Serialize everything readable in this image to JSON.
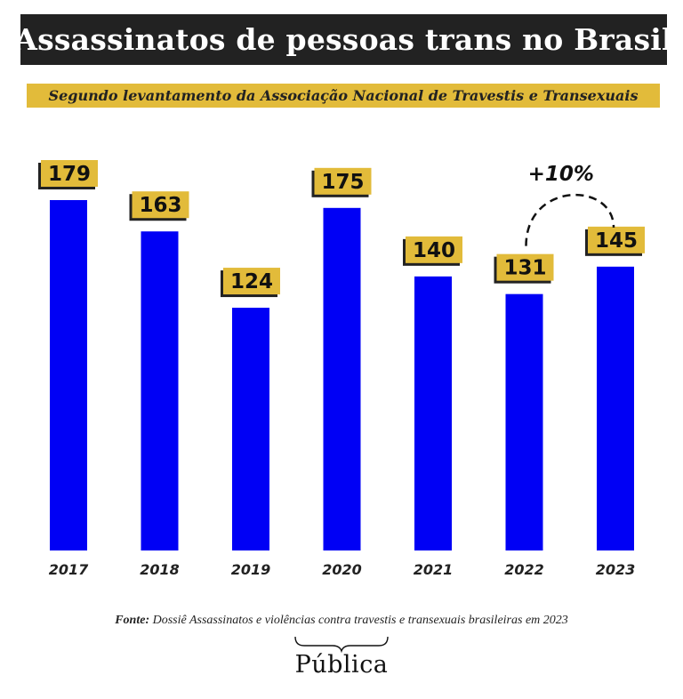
{
  "title": "Assassinatos de pessoas trans no Brasil",
  "subtitle": "Segundo levantamento da Associação Nacional de Travestis e Transexuais",
  "source_label": "Fonte:",
  "source_text": "Dossiê Assassinatos e violências contra travestis e transexuais brasileiras em 2023",
  "logo": "Pública",
  "colors": {
    "bar": "#0000f5",
    "label_bg": "#e2bb3a",
    "label_shadow": "#222222",
    "title_bg": "#222222"
  },
  "chart_data": {
    "type": "bar",
    "categories": [
      "2017",
      "2018",
      "2019",
      "2020",
      "2021",
      "2022",
      "2023"
    ],
    "values": [
      179,
      163,
      124,
      175,
      140,
      131,
      145
    ],
    "data_labels": [
      "179",
      "163",
      "124",
      "175",
      "140",
      "131",
      "145"
    ],
    "title": "Assassinatos de pessoas trans no Brasil",
    "subtitle": "Segundo levantamento da Associação Nacional de Travestis e Transexuais",
    "xlabel": "",
    "ylabel": "",
    "ylim": [
      0,
      179
    ],
    "grid": false,
    "legend": "none",
    "annotations": [
      {
        "text": "+10%",
        "from": "2022",
        "to": "2023"
      }
    ]
  }
}
